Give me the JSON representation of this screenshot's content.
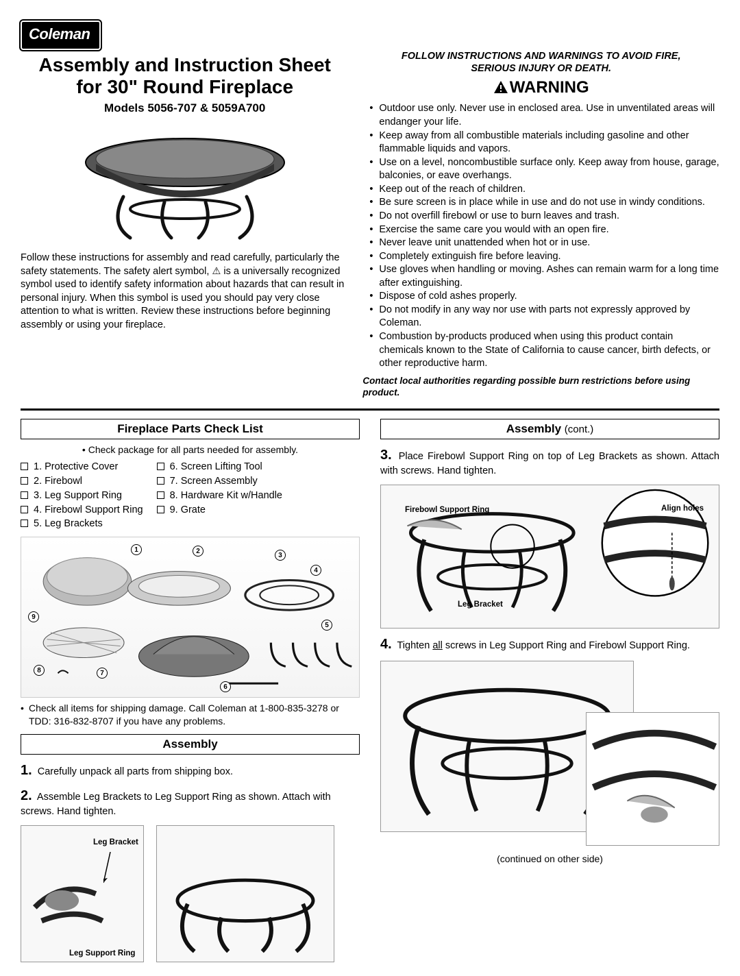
{
  "brand": "Coleman",
  "title_line1": "Assembly and Instruction Sheet",
  "title_line2": "for 30\" Round Fireplace",
  "models": "Models 5056-707 & 5059A700",
  "intro": "Follow these instructions for assembly and read carefully, particularly the safety statements. The safety alert symbol, ⚠ is a universally recognized symbol used to identify safety information about hazards that can result in personal injury. When this symbol is used you should pay very close attention to what is written. Review these instructions before beginning assembly or using your fireplace.",
  "follow_line1": "FOLLOW INSTRUCTIONS AND WARNINGS TO AVOID FIRE,",
  "follow_line2": "SERIOUS INJURY OR DEATH.",
  "warning_heading": "WARNING",
  "warnings": [
    "Outdoor use only. Never use in enclosed area. Use in unventilated areas will endanger your life.",
    "Keep away from all combustible materials including gasoline and other flammable liquids and vapors.",
    "Use on a level, noncombustible surface only. Keep away from house, garage, balconies, or eave overhangs.",
    "Keep out of the reach of children.",
    "Be sure screen is in place while in use and do not use in windy conditions.",
    "Do not overfill firebowl or use to burn leaves and trash.",
    "Exercise the same care you would with an open fire.",
    "Never leave unit unattended when hot or in use.",
    "Completely extinguish fire before leaving.",
    "Use gloves when handling or moving. Ashes can remain warm for a long time after extinguishing.",
    "Dispose of cold ashes properly.",
    "Do not modify in any way nor use with parts not expressly approved by Coleman.",
    "Combustion by-products produced when using this product contain chemicals known to the State of California to cause cancer, birth defects, or other reproductive harm."
  ],
  "contact_line": "Contact local authorities regarding possible burn restrictions before using product.",
  "checklist_header": "Fireplace Parts Check List",
  "checklist_note": "• Check package for all parts needed for assembly.",
  "parts_left": [
    "1.  Protective Cover",
    "2.  Firebowl",
    "3.  Leg Support Ring",
    "4.  Firebowl Support Ring",
    "5.  Leg Brackets"
  ],
  "parts_right": [
    "6.  Screen Lifting Tool",
    "7.  Screen Assembly",
    "8.  Hardware Kit w/Handle",
    "9.  Grate"
  ],
  "damage_note": "Check all items for shipping damage. Call Coleman at 1-800-835-3278 or TDD: 316-832-8707 if you have any problems.",
  "assembly_header": "Assembly",
  "assembly_cont": "(cont.)",
  "step1": "Carefully unpack all parts from shipping box.",
  "step2": "Assemble Leg Brackets to Leg Support Ring as shown. Attach with screws. Hand tighten.",
  "step3": "Place Firebowl Support Ring on top of Leg Brackets as shown. Attach with screws.  Hand tighten.",
  "step4_prefix": "Tighten ",
  "step4_underline": "all",
  "step4_suffix": " screws in Leg Support Ring and Firebowl Support Ring.",
  "continued": "(continued on other side)",
  "labels": {
    "leg_bracket": "Leg Bracket",
    "leg_support_ring": "Leg Support Ring",
    "firebowl_support_ring": "Firebowl Support Ring",
    "align_holes": "Align holes"
  },
  "colors": {
    "text": "#000000",
    "bg": "#ffffff",
    "box_border": "#999999",
    "diagram_bg": "#f8f8f8"
  }
}
